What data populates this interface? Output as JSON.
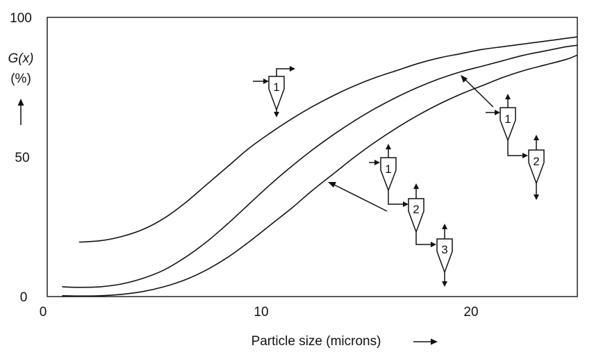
{
  "chart_data": {
    "type": "line",
    "title": "",
    "xlabel": "Particle size (microns)",
    "ylabel_main": "G(x)",
    "ylabel_unit": "(%)",
    "xlim": [
      0,
      25
    ],
    "ylim": [
      0,
      100
    ],
    "x_ticks": [
      "0",
      "10",
      "20"
    ],
    "x_tick_values": [
      0,
      10,
      20
    ],
    "y_ticks": [
      "0",
      "50",
      "100"
    ],
    "y_tick_values": [
      0,
      50,
      100
    ],
    "grid": false,
    "series": [
      {
        "x": [
          1.5,
          2.5,
          3.5,
          4.5,
          5.5,
          6.5,
          7.5,
          8.5,
          9.5,
          10.5,
          11.5,
          12.5,
          13.5,
          14.5,
          15.5,
          16.5,
          17.5,
          18.5,
          19.5,
          20.5,
          21.5,
          22.5,
          23.5,
          24.5,
          25
        ],
        "values": [
          19.5,
          20,
          21.5,
          24,
          28,
          33.5,
          40,
          46.5,
          53,
          58.5,
          63.5,
          68,
          72,
          75.5,
          78.5,
          81,
          83.5,
          85.5,
          87,
          88.5,
          89.5,
          90.5,
          91.5,
          92.5,
          93
        ]
      },
      {
        "x": [
          0.7,
          1.5,
          2.5,
          3.5,
          4.5,
          5.5,
          6.5,
          7.5,
          8.5,
          9.5,
          10.5,
          11.5,
          12.5,
          13.5,
          14.5,
          15.5,
          16.5,
          17.5,
          18.5,
          19.5,
          20.5,
          21.5,
          22.5,
          23.5,
          24.5,
          25
        ],
        "values": [
          3.5,
          3.3,
          3.5,
          4.5,
          6.5,
          9.5,
          14,
          19.5,
          26,
          33,
          40,
          46.5,
          52.5,
          58,
          63,
          67.5,
          71.5,
          75,
          78,
          80.5,
          82.5,
          84.5,
          86.5,
          88,
          89.5,
          90
        ]
      },
      {
        "x": [
          0.7,
          1.5,
          2.5,
          3.5,
          4.5,
          5.5,
          6.5,
          7.5,
          8.5,
          9.5,
          10.5,
          11.5,
          12.5,
          13.5,
          14.5,
          15.5,
          16.5,
          17.5,
          18.5,
          19.5,
          20.5,
          21.5,
          22.5,
          23.5,
          24.5,
          25
        ],
        "values": [
          0.3,
          0.2,
          0.3,
          0.8,
          1.8,
          3.5,
          6,
          9.5,
          14,
          19.5,
          25.5,
          31.5,
          38,
          44,
          50,
          55.5,
          60.5,
          65,
          69,
          72.5,
          75.5,
          78.5,
          81,
          83,
          85,
          86.5
        ]
      }
    ],
    "annotations": [
      "1",
      "1",
      "2",
      "1",
      "2",
      "3"
    ]
  }
}
